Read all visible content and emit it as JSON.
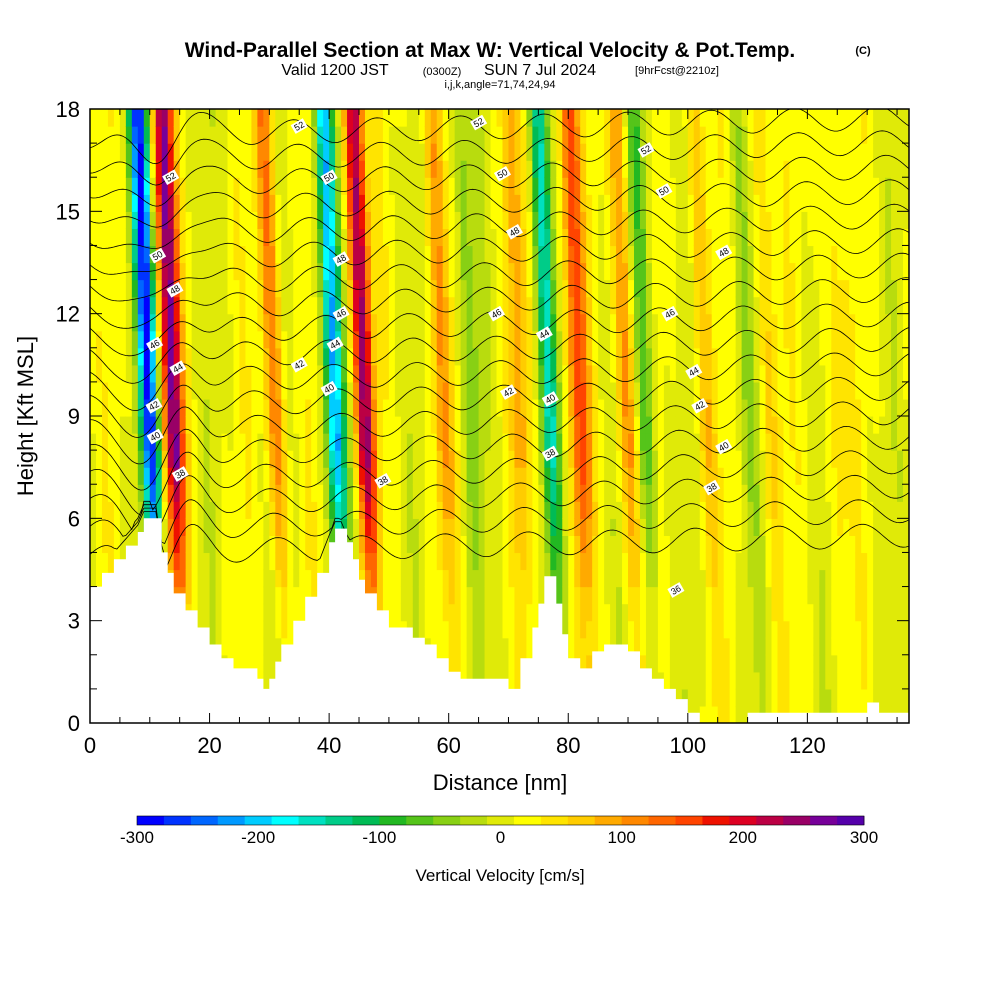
{
  "title": {
    "main": "Wind-Parallel Section at Max W: Vertical Velocity & Pot.Temp.",
    "copyright": "(C)",
    "valid_prefix": "Valid 1200 JST",
    "utc": "(0300Z)",
    "valid_date": "SUN 7 Jul 2024",
    "forecast": "[9hrFcst@2210z]",
    "grid_info": "i,j,k,angle=71,74,24,94"
  },
  "chart_data": {
    "type": "heatmap",
    "xlabel": "Distance [nm]",
    "ylabel": "Height [Kft MSL]",
    "xlim": [
      0,
      137
    ],
    "ylim": [
      0,
      18
    ],
    "x_ticks": [
      0,
      20,
      40,
      60,
      80,
      100,
      120
    ],
    "y_ticks": [
      0,
      3,
      6,
      9,
      12,
      15,
      18
    ],
    "colorbar": {
      "title": "Vertical Velocity [cm/s]",
      "min": -300,
      "max": 300,
      "ticks": [
        -300,
        -200,
        -100,
        0,
        100,
        200,
        300
      ],
      "colors": [
        "#0000ff",
        "#0033ff",
        "#0066ff",
        "#0099ff",
        "#00ccff",
        "#00ffff",
        "#00e0c0",
        "#00cc88",
        "#00bb55",
        "#22b822",
        "#55c41a",
        "#88d014",
        "#b8dc0e",
        "#e0ea08",
        "#ffff00",
        "#ffe400",
        "#ffcc00",
        "#ffaa00",
        "#ff8800",
        "#ff6600",
        "#ff4400",
        "#ee1100",
        "#dd0022",
        "#bb0044",
        "#990066",
        "#770099",
        "#5500aa"
      ]
    },
    "updraft_bands": [
      {
        "x": 14,
        "w": 260
      },
      {
        "x": 31,
        "w": 120
      },
      {
        "x": 46,
        "w": 240
      },
      {
        "x": 59,
        "w": 80
      },
      {
        "x": 72,
        "w": 70
      },
      {
        "x": 82,
        "w": 150
      },
      {
        "x": 90,
        "w": 110
      },
      {
        "x": 103,
        "w": 60
      },
      {
        "x": 114,
        "w": 50
      },
      {
        "x": 125,
        "w": 45
      }
    ],
    "downdraft_bands": [
      {
        "x": 10,
        "w": -300
      },
      {
        "x": 41,
        "w": -240
      },
      {
        "x": 77,
        "w": -150
      },
      {
        "x": 93,
        "w": -110
      },
      {
        "x": 64,
        "w": -60
      },
      {
        "x": 110,
        "w": -40
      }
    ],
    "terrain": {
      "x": [
        0,
        2,
        4,
        6,
        8,
        9,
        10,
        11,
        12,
        13,
        14,
        16,
        18,
        20,
        22,
        24,
        26,
        28,
        29,
        30,
        31,
        32,
        34,
        36,
        38,
        40,
        41,
        42,
        43,
        44,
        45,
        46,
        48,
        50,
        52,
        54,
        56,
        58,
        60,
        62,
        64,
        66,
        68,
        70,
        72,
        74,
        75,
        76,
        77,
        78,
        79,
        80,
        82,
        84,
        86,
        88,
        90,
        92,
        94,
        96,
        98,
        100,
        102,
        104,
        106,
        108,
        110,
        112,
        114,
        116,
        118,
        120,
        122,
        124,
        126,
        128,
        130,
        132,
        134,
        137
      ],
      "y": [
        4.0,
        4.4,
        4.8,
        5.2,
        5.6,
        6.0,
        6.0,
        6.0,
        5.0,
        4.4,
        3.8,
        3.3,
        2.8,
        2.3,
        1.9,
        1.6,
        1.6,
        1.3,
        1.0,
        1.3,
        1.8,
        2.3,
        3.0,
        3.7,
        4.4,
        5.3,
        5.7,
        5.7,
        5.3,
        4.8,
        4.2,
        3.8,
        3.3,
        2.8,
        2.8,
        2.5,
        2.3,
        1.9,
        1.5,
        1.3,
        1.3,
        1.3,
        1.3,
        1.0,
        1.9,
        2.8,
        3.5,
        4.3,
        4.3,
        3.5,
        2.6,
        1.9,
        1.6,
        2.1,
        2.3,
        2.3,
        2.1,
        1.6,
        1.3,
        1.0,
        0.7,
        0.3,
        0.0,
        0.0,
        0.0,
        0.0,
        0.3,
        0.3,
        0.3,
        0.3,
        0.3,
        0.3,
        0.3,
        0.3,
        0.3,
        0.3,
        0.6,
        0.3,
        0.3,
        0.3
      ]
    },
    "theta_contours": {
      "levels": [
        36,
        37,
        38,
        39,
        40,
        41,
        42,
        43,
        44,
        45,
        46,
        47,
        48,
        49,
        50,
        51,
        52,
        53
      ],
      "labels": [
        {
          "text": "52",
          "x": 13.5,
          "y": 16.0
        },
        {
          "text": "52",
          "x": 35,
          "y": 17.5
        },
        {
          "text": "52",
          "x": 65,
          "y": 17.6
        },
        {
          "text": "52",
          "x": 93,
          "y": 16.8
        },
        {
          "text": "50",
          "x": 11.3,
          "y": 13.7
        },
        {
          "text": "50",
          "x": 40,
          "y": 16.0
        },
        {
          "text": "50",
          "x": 69,
          "y": 16.1
        },
        {
          "text": "50",
          "x": 96,
          "y": 15.6
        },
        {
          "text": "48",
          "x": 14.2,
          "y": 12.7
        },
        {
          "text": "48",
          "x": 42,
          "y": 13.6
        },
        {
          "text": "48",
          "x": 71,
          "y": 14.4
        },
        {
          "text": "48",
          "x": 106,
          "y": 13.8
        },
        {
          "text": "46",
          "x": 10.8,
          "y": 11.1
        },
        {
          "text": "46",
          "x": 42,
          "y": 12.0
        },
        {
          "text": "46",
          "x": 68,
          "y": 12.0
        },
        {
          "text": "46",
          "x": 97,
          "y": 12.0
        },
        {
          "text": "44",
          "x": 14.7,
          "y": 10.4
        },
        {
          "text": "44",
          "x": 41,
          "y": 11.1
        },
        {
          "text": "44",
          "x": 76,
          "y": 11.4
        },
        {
          "text": "44",
          "x": 101,
          "y": 10.3
        },
        {
          "text": "42",
          "x": 10.7,
          "y": 9.3
        },
        {
          "text": "42",
          "x": 35,
          "y": 10.5
        },
        {
          "text": "42",
          "x": 70,
          "y": 9.7
        },
        {
          "text": "42",
          "x": 102,
          "y": 9.3
        },
        {
          "text": "40",
          "x": 10.9,
          "y": 8.4
        },
        {
          "text": "40",
          "x": 40,
          "y": 9.8
        },
        {
          "text": "40",
          "x": 77,
          "y": 9.5
        },
        {
          "text": "40",
          "x": 106,
          "y": 8.1
        },
        {
          "text": "38",
          "x": 15.1,
          "y": 7.3
        },
        {
          "text": "38",
          "x": 49,
          "y": 7.1
        },
        {
          "text": "38",
          "x": 77,
          "y": 7.9
        },
        {
          "text": "38",
          "x": 104,
          "y": 6.9
        },
        {
          "text": "36",
          "x": 98,
          "y": 3.9
        }
      ]
    }
  }
}
